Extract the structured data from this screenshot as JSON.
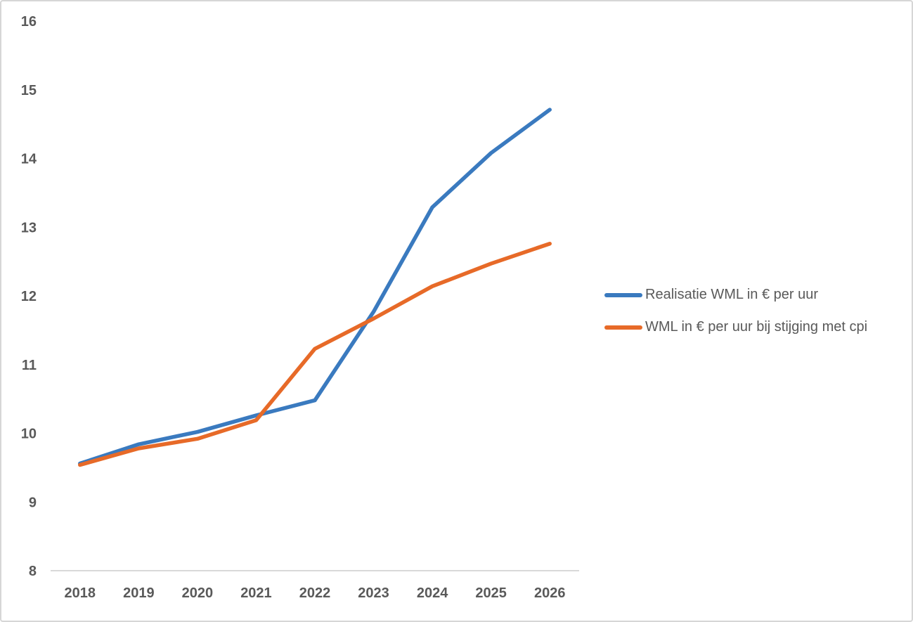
{
  "chart_data": {
    "type": "line",
    "title": "",
    "xlabel": "",
    "ylabel": "",
    "categories": [
      "2018",
      "2019",
      "2020",
      "2021",
      "2022",
      "2023",
      "2024",
      "2025",
      "2026"
    ],
    "series": [
      {
        "name": "Realisatie WML in € per uur",
        "color": "#3a7abf",
        "values": [
          9.56,
          9.84,
          10.02,
          10.26,
          10.48,
          11.77,
          13.29,
          14.08,
          14.71
        ]
      },
      {
        "name": "WML in € per uur bij stijging met cpi",
        "color": "#e76a28",
        "values": [
          9.54,
          9.78,
          9.92,
          10.19,
          11.23,
          11.67,
          12.14,
          12.47,
          12.76
        ]
      }
    ],
    "ylim": [
      8,
      16
    ],
    "y_ticks": [
      8,
      9,
      10,
      11,
      12,
      13,
      14,
      15,
      16
    ],
    "grid": false,
    "legend_position": "right"
  },
  "styles": {
    "axis_line_color": "#d9d9d9",
    "tick_text_color": "#595959",
    "frame_border_color": "#d6d6d6",
    "background_color": "#ffffff"
  }
}
